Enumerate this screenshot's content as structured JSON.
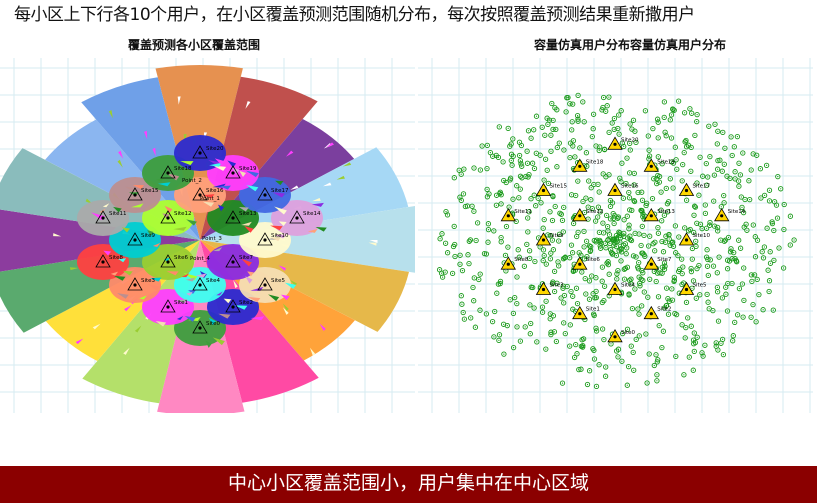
{
  "headline": "每小区上下行各10个用户，在小区覆盖预测范围随机分布，每次按照覆盖预测结果重新撒用户",
  "left_panel": {
    "title": "覆盖预测各小区覆盖范围",
    "palette": [
      "#e69150",
      "#c0504d",
      "#7b3f9e",
      "#a6d8f5",
      "#b7e0ec",
      "#e6b84a",
      "#ffa33a",
      "#ff4aa4",
      "#ff88c2",
      "#b4e06a",
      "#ffe03a",
      "#5aaa6e",
      "#8c3c9e",
      "#8abcbc",
      "#8bb6f0",
      "#6fa0e8"
    ],
    "center_palette": [
      "#3d9e3d",
      "#ff3dff",
      "#2b2bcf",
      "#ff8a6a",
      "#3dfff0",
      "#f5deb3",
      "#9acd32",
      "#8a2be2",
      "#ff4040",
      "#00ced1",
      "#fffacd",
      "#aaaaaa",
      "#adff2f",
      "#228b22",
      "#dda0dd",
      "#bc8f8f",
      "#ffa07a",
      "#4169e1"
    ],
    "sites": [
      "Site0",
      "Site1",
      "Site2",
      "Site3",
      "Site4",
      "Site5",
      "Site6",
      "Site7",
      "Site8",
      "Site9",
      "Site10",
      "Site11",
      "Site12",
      "Site13",
      "Site14",
      "Site15",
      "Site16",
      "Site17",
      "Site18",
      "Site19",
      "Site20"
    ],
    "points": [
      "Point_1",
      "Point_2",
      "Point_3",
      "Point_4"
    ]
  },
  "right_panel": {
    "title": "容量仿真用户分布容量仿真用户分布",
    "user_color": "#1a9a1a",
    "site_color": "#ffd700"
  },
  "banner": {
    "text": "中心小区覆盖范围小，用户集中在中心区域",
    "color": "#8b0000"
  }
}
